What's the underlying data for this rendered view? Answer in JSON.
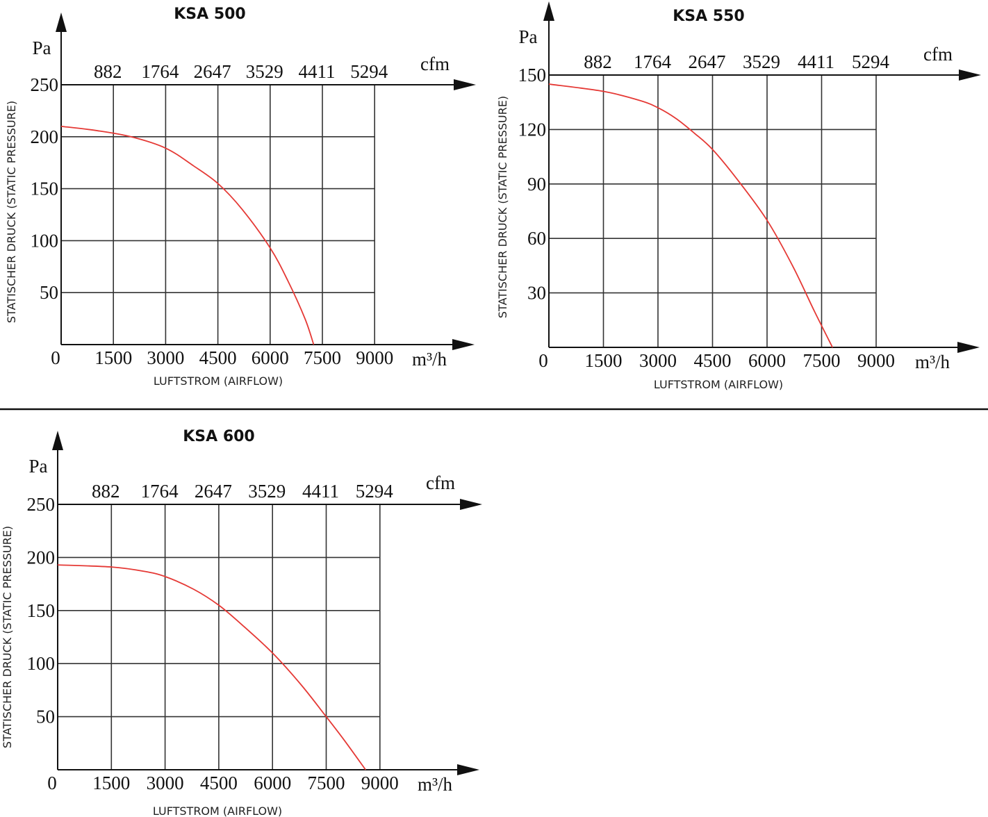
{
  "chart_data": [
    {
      "type": "line",
      "title": "KSA 500",
      "xlabel": "LUFTSTROM (AIRFLOW)",
      "ylabel": "STATISCHER DRUCK (STATIC PRESSURE)",
      "x_unit": "m³/h",
      "y_unit": "Pa",
      "secondary_x_unit": "cfm",
      "xlim": [
        0,
        9000
      ],
      "ylim": [
        0,
        250
      ],
      "x_ticks": [
        "0",
        "1500",
        "3000",
        "4500",
        "6000",
        "7500",
        "9000"
      ],
      "y_ticks": [
        "50",
        "100",
        "150",
        "200",
        "250"
      ],
      "secondary_x_ticks": [
        "882",
        "1764",
        "2647",
        "3529",
        "4411",
        "5294"
      ],
      "grid": true,
      "series": [
        {
          "x": [
            0,
            1000,
            2000,
            3000,
            3800,
            4500,
            5200,
            6000,
            6500,
            7000,
            7250
          ],
          "y": [
            210,
            206,
            200,
            189,
            172,
            155,
            130,
            93,
            62,
            25,
            0
          ]
        }
      ]
    },
    {
      "type": "line",
      "title": "KSA 550",
      "xlabel": "LUFTSTROM (AIRFLOW)",
      "ylabel": "STATISCHER DRUCK (STATIC PRESSURE)",
      "x_unit": "m³/h",
      "y_unit": "Pa",
      "secondary_x_unit": "cfm",
      "xlim": [
        0,
        9000
      ],
      "ylim": [
        0,
        150
      ],
      "x_ticks": [
        "0",
        "1500",
        "3000",
        "4500",
        "6000",
        "7500",
        "9000"
      ],
      "y_ticks": [
        "30",
        "60",
        "90",
        "120",
        "150"
      ],
      "secondary_x_ticks": [
        "882",
        "1764",
        "2647",
        "3529",
        "4411",
        "5294"
      ],
      "grid": true,
      "series": [
        {
          "x": [
            0,
            1500,
            2500,
            3000,
            3500,
            4000,
            4500,
            5200,
            6000,
            6700,
            7300,
            7800
          ],
          "y": [
            145,
            141,
            136,
            132,
            126,
            118,
            109,
            92,
            70,
            45,
            20,
            0
          ]
        }
      ]
    },
    {
      "type": "line",
      "title": "KSA 600",
      "xlabel": "LUFTSTROM (AIRFLOW)",
      "ylabel": "STATISCHER DRUCK (STATIC PRESSURE)",
      "x_unit": "m³/h",
      "y_unit": "Pa",
      "secondary_x_unit": "cfm",
      "xlim": [
        0,
        9000
      ],
      "ylim": [
        0,
        250
      ],
      "x_ticks": [
        "0",
        "1500",
        "3000",
        "4500",
        "6000",
        "7500",
        "9000"
      ],
      "y_ticks": [
        "50",
        "100",
        "150",
        "200",
        "250"
      ],
      "secondary_x_ticks": [
        "882",
        "1764",
        "2647",
        "3529",
        "4411",
        "5294"
      ],
      "grid": true,
      "series": [
        {
          "x": [
            0,
            1500,
            2400,
            3000,
            3800,
            4500,
            5200,
            6000,
            6800,
            7500,
            8000,
            8600
          ],
          "y": [
            193,
            191,
            187,
            182,
            170,
            155,
            135,
            110,
            80,
            50,
            28,
            0
          ]
        }
      ]
    }
  ]
}
